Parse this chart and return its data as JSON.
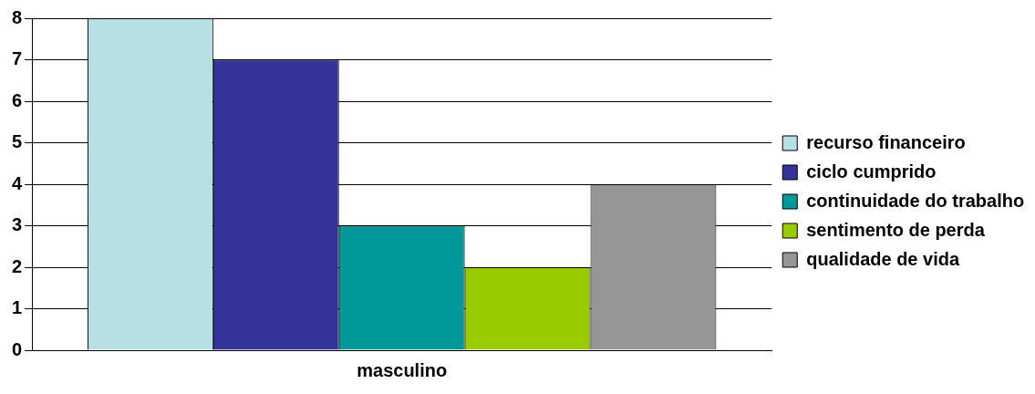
{
  "chart_data": {
    "type": "bar",
    "categories": [
      "masculino"
    ],
    "series": [
      {
        "name": "recurso financeiro",
        "color": "#b7e0e4",
        "values": [
          8
        ]
      },
      {
        "name": "ciclo cumprido",
        "color": "#333399",
        "values": [
          7
        ]
      },
      {
        "name": "continuidade do trabalho",
        "color": "#009999",
        "values": [
          3
        ]
      },
      {
        "name": "sentimento de perda",
        "color": "#99cc00",
        "values": [
          2
        ]
      },
      {
        "name": "qualidade de vida",
        "color": "#969696",
        "values": [
          4
        ]
      }
    ],
    "ylim": [
      0,
      8
    ],
    "yticks": [
      0,
      1,
      2,
      3,
      4,
      5,
      6,
      7,
      8
    ],
    "grid": "y",
    "legend": "right"
  }
}
